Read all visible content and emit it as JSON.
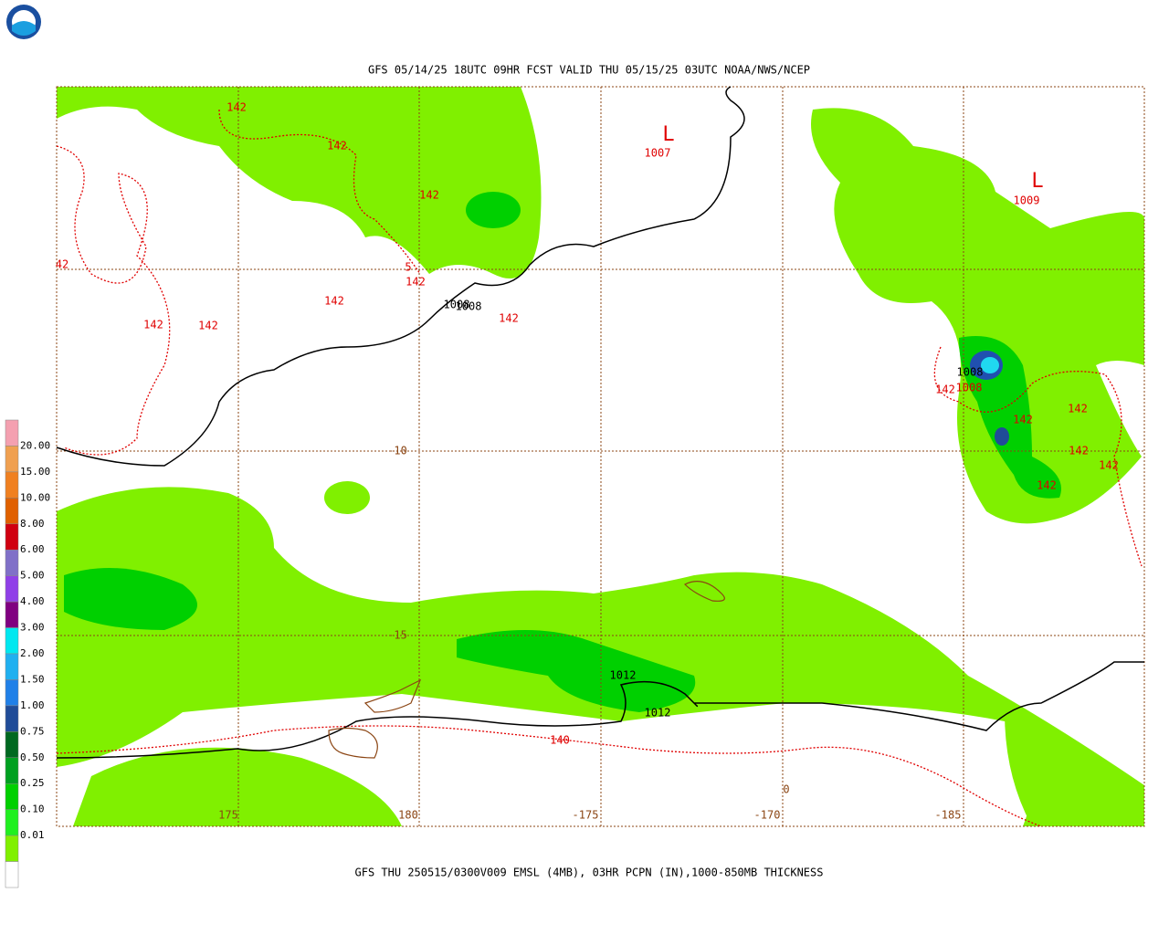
{
  "header": {
    "title": "GFS 05/14/25 18UTC 09HR FCST VALID THU 05/15/25 03UTC NOAA/NWS/NCEP"
  },
  "footer": {
    "caption": "GFS THU 250515/0300V009 EMSL (4MB), 03HR PCPN (IN),1000-850MB THICKNESS"
  },
  "map": {
    "grid_labels": [
      "175",
      "180",
      "-175",
      "-170",
      "-185",
      "0",
      "-10",
      "-15"
    ],
    "lows": [
      {
        "symbol": "L",
        "pressure": "1007"
      },
      {
        "symbol": "L",
        "pressure": "1009"
      }
    ],
    "contour_labels": [
      "142",
      "142",
      "142",
      "42",
      "5",
      "142",
      "142",
      "142",
      "142",
      "1008",
      "1008",
      "142",
      "1008",
      "1008",
      "142",
      "142",
      "142",
      "142",
      "142",
      "142",
      "1012",
      "1012",
      "140"
    ]
  },
  "legend": {
    "labels": [
      "20.00",
      "15.00",
      "10.00",
      "8.00",
      "6.00",
      "5.00",
      "4.00",
      "3.00",
      "2.00",
      "1.50",
      "1.00",
      "0.75",
      "0.50",
      "0.25",
      "0.10",
      "0.01"
    ],
    "colors": [
      "#f4a0b0",
      "#f0a050",
      "#f08020",
      "#e06000",
      "#d00010",
      "#8070c8",
      "#9040e8",
      "#800080",
      "#00e8f0",
      "#20b0f0",
      "#2080e8",
      "#204c98",
      "#006820",
      "#00a020",
      "#00d000",
      "#20f020",
      "#80f000",
      "#ffffff"
    ]
  }
}
